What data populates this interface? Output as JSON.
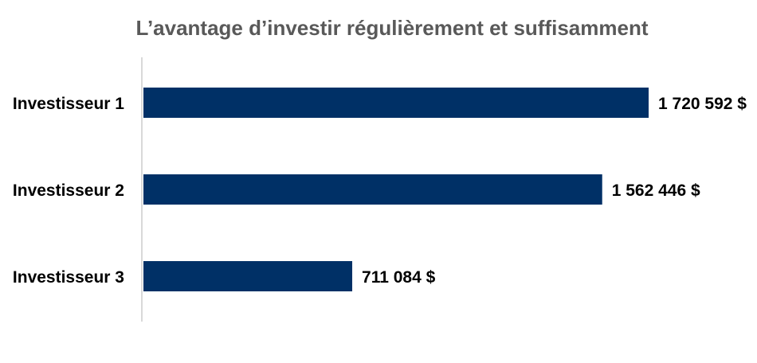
{
  "chart_data": {
    "type": "bar",
    "orientation": "horizontal",
    "title": "L’avantage d’investir régulièrement et suffisamment",
    "xlabel": "",
    "ylabel": "",
    "categories": [
      "Investisseur 1",
      "Investisseur 2",
      "Investisseur 3"
    ],
    "values": [
      1720592,
      1562446,
      711084
    ],
    "value_labels": [
      "1 720 592 $",
      "1 562 446 $",
      "711 084 $"
    ],
    "xlim": [
      0,
      1720592
    ],
    "grid": false,
    "legend": "none",
    "colors": {
      "bar": "#003066",
      "axis": "#d9d9d9",
      "title": "#595959"
    }
  }
}
